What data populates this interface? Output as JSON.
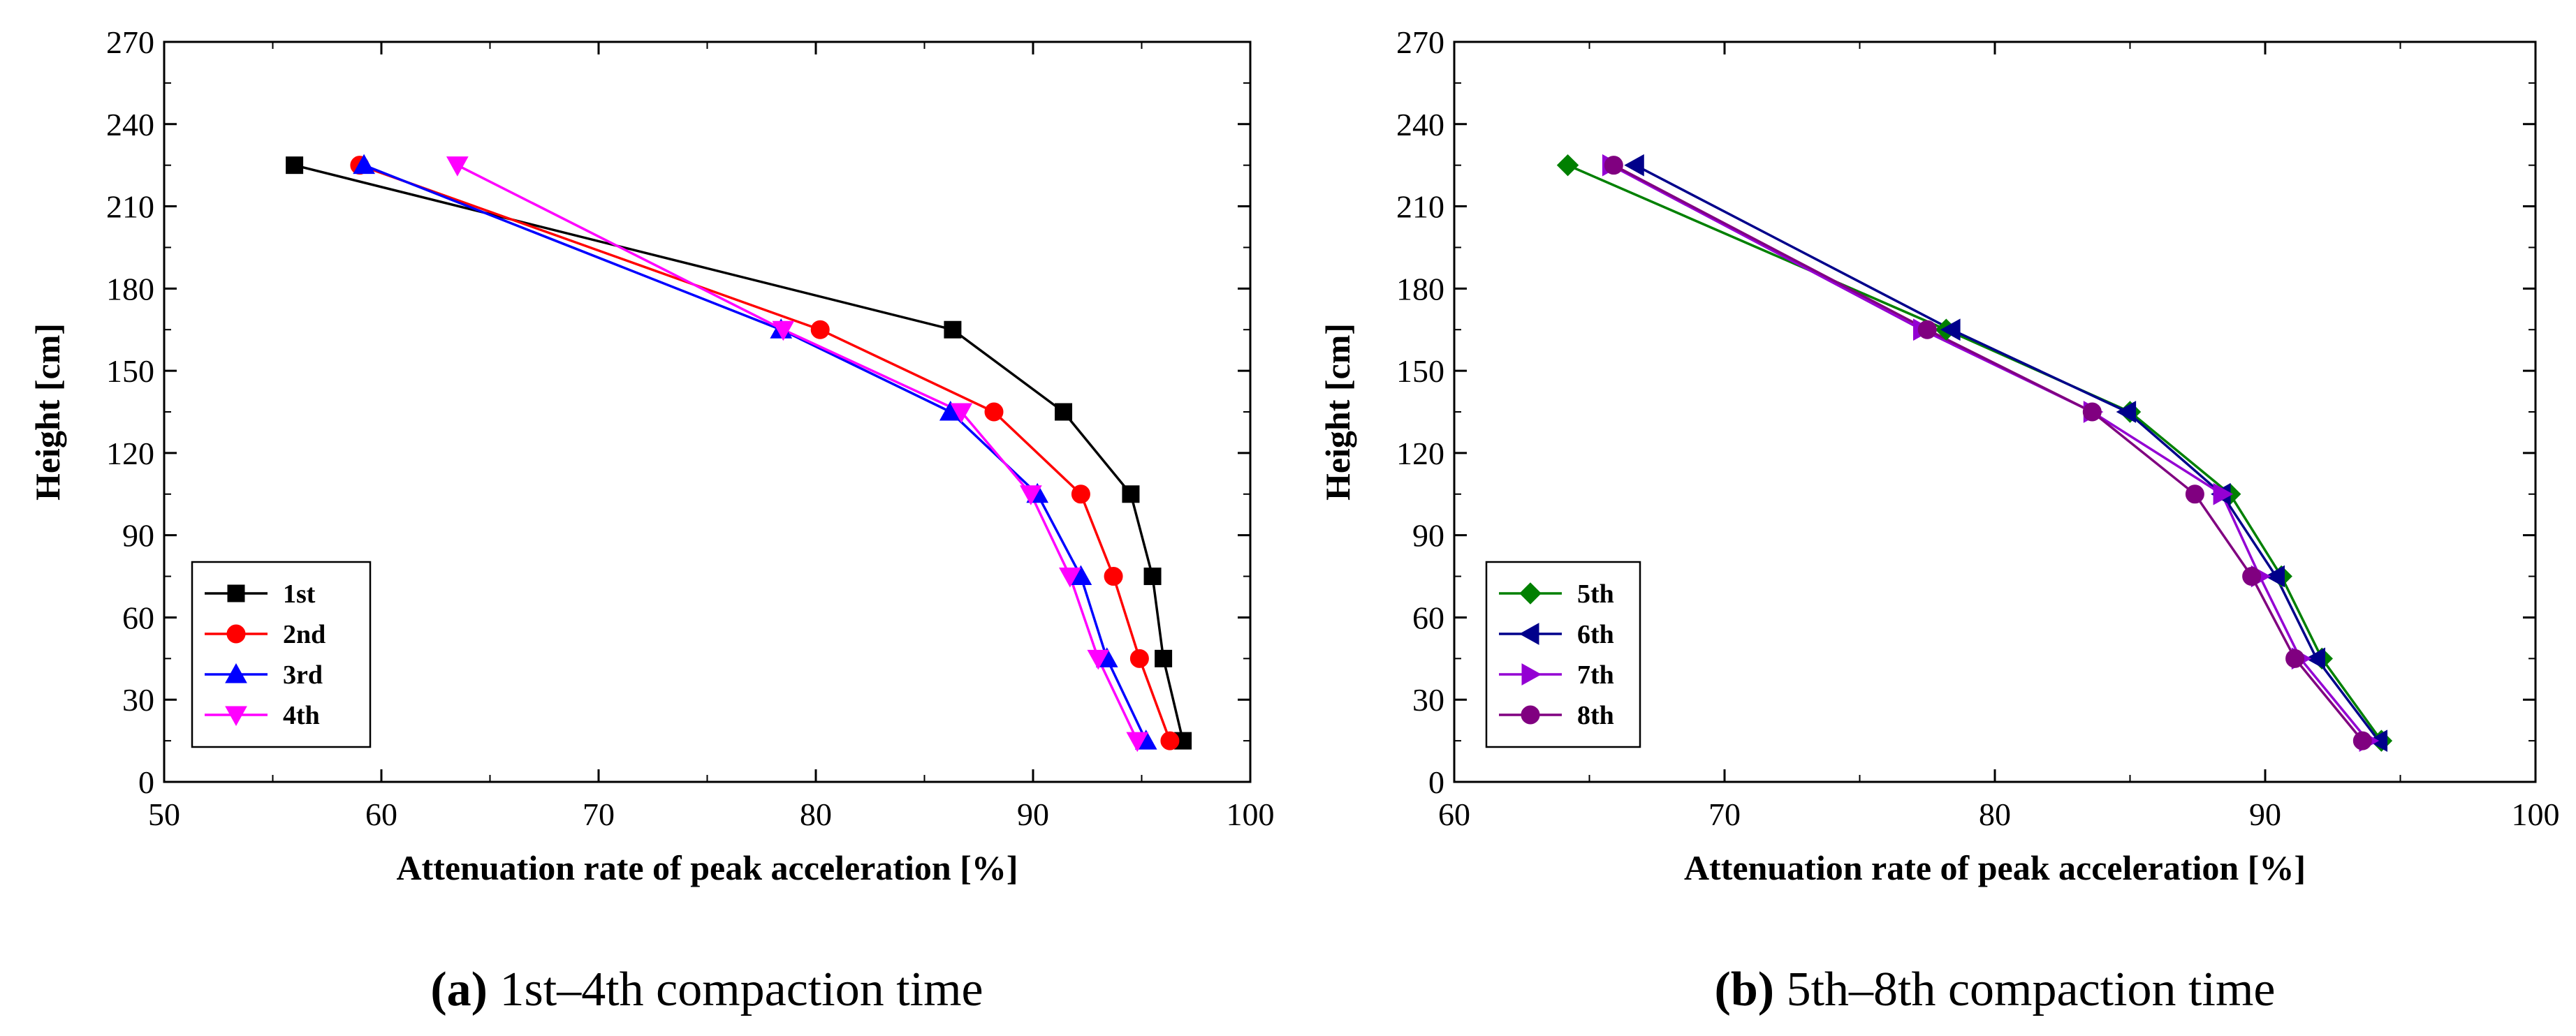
{
  "chart_data": [
    {
      "type": "line",
      "caption_label": "(a)",
      "caption_text": " 1st–4th compaction time",
      "xlabel": "Attenuation rate of peak acceleration [%]",
      "ylabel": "Height [cm]",
      "xlim": [
        50,
        100
      ],
      "ylim": [
        0,
        270
      ],
      "xticks": [
        50,
        60,
        70,
        80,
        90,
        100
      ],
      "yticks": [
        0,
        30,
        60,
        90,
        120,
        150,
        180,
        210,
        240,
        270
      ],
      "legend_position": "bottom-left",
      "series": [
        {
          "name": "1st",
          "color": "#000000",
          "marker": "square",
          "x": [
            56.0,
            86.3,
            91.4,
            94.5,
            95.5,
            96.0,
            96.9
          ],
          "y": [
            225,
            165,
            135,
            105,
            75,
            45,
            15
          ]
        },
        {
          "name": "2nd",
          "color": "#ff0000",
          "marker": "circle",
          "x": [
            59.0,
            80.2,
            88.2,
            92.2,
            93.7,
            94.9,
            96.3
          ],
          "y": [
            225,
            165,
            135,
            105,
            75,
            45,
            15
          ]
        },
        {
          "name": "3rd",
          "color": "#0000ff",
          "marker": "triangle-up",
          "x": [
            59.2,
            78.4,
            86.2,
            90.2,
            92.2,
            93.4,
            95.2
          ],
          "y": [
            225,
            165,
            135,
            105,
            75,
            45,
            15
          ]
        },
        {
          "name": "4th",
          "color": "#ff00ff",
          "marker": "triangle-down",
          "x": [
            63.5,
            78.5,
            86.7,
            89.9,
            91.7,
            93.0,
            94.8
          ],
          "y": [
            225,
            165,
            135,
            105,
            75,
            45,
            15
          ]
        }
      ]
    },
    {
      "type": "line",
      "caption_label": "(b)",
      "caption_text": " 5th–8th compaction time",
      "xlabel": "Attenuation rate of peak acceleration [%]",
      "ylabel": "Height [cm]",
      "xlim": [
        60,
        100
      ],
      "ylim": [
        0,
        270
      ],
      "xticks": [
        60,
        70,
        80,
        90,
        100
      ],
      "yticks": [
        0,
        30,
        60,
        90,
        120,
        150,
        180,
        210,
        240,
        270
      ],
      "legend_position": "bottom-left",
      "series": [
        {
          "name": "5th",
          "color": "#008000",
          "marker": "diamond",
          "x": [
            64.2,
            78.2,
            85.0,
            88.7,
            90.6,
            92.1,
            94.3
          ],
          "y": [
            225,
            165,
            135,
            105,
            75,
            45,
            15
          ]
        },
        {
          "name": "6th",
          "color": "#00008b",
          "marker": "triangle-left",
          "x": [
            66.7,
            78.4,
            84.9,
            88.4,
            90.4,
            91.9,
            94.2
          ],
          "y": [
            225,
            165,
            135,
            105,
            75,
            45,
            15
          ]
        },
        {
          "name": "7th",
          "color": "#9400d3",
          "marker": "triangle-right",
          "x": [
            65.8,
            77.3,
            83.6,
            88.4,
            89.8,
            91.3,
            93.8
          ],
          "y": [
            225,
            165,
            135,
            105,
            75,
            45,
            15
          ]
        },
        {
          "name": "8th",
          "color": "#800080",
          "marker": "circle",
          "x": [
            65.9,
            77.5,
            83.6,
            87.4,
            89.5,
            91.1,
            93.6
          ],
          "y": [
            225,
            165,
            135,
            105,
            75,
            45,
            15
          ]
        }
      ]
    }
  ]
}
